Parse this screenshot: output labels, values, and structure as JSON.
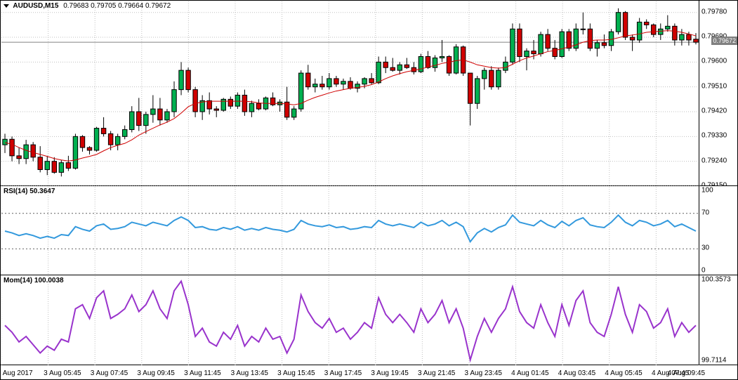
{
  "symbol": "AUDUSD,M15",
  "ohlc": "0.79683 0.79705 0.79664 0.79672",
  "price_panel": {
    "ylim": [
      0.7915,
      0.7982
    ],
    "yticks": [
      0.7915,
      0.7924,
      0.7933,
      0.7942,
      0.7951,
      0.796,
      0.7969,
      0.7978
    ],
    "ytick_labels": [
      "0.79150",
      "0.79240",
      "0.79330",
      "0.79420",
      "0.79510",
      "0.79600",
      "0.79690",
      "0.79780"
    ],
    "current_price": 0.79672,
    "current_price_label": "0.79672",
    "grid_color": "#c0c0c0",
    "bg_color": "#ffffff",
    "ma_color": "#d00000",
    "candle_up_color": "#00b050",
    "candle_down_color": "#d00000",
    "candle_border": "#000000",
    "candles": [
      {
        "o": 0.793,
        "h": 0.7934,
        "l": 0.7927,
        "c": 0.7932
      },
      {
        "o": 0.7932,
        "h": 0.7933,
        "l": 0.7924,
        "c": 0.7926
      },
      {
        "o": 0.7926,
        "h": 0.7929,
        "l": 0.7923,
        "c": 0.7925
      },
      {
        "o": 0.7925,
        "h": 0.79318,
        "l": 0.7923,
        "c": 0.793
      },
      {
        "o": 0.793,
        "h": 0.7931,
        "l": 0.7924,
        "c": 0.79255
      },
      {
        "o": 0.79255,
        "h": 0.79295,
        "l": 0.792,
        "c": 0.7921
      },
      {
        "o": 0.7921,
        "h": 0.7926,
        "l": 0.7919,
        "c": 0.7924
      },
      {
        "o": 0.7924,
        "h": 0.79255,
        "l": 0.79195,
        "c": 0.792
      },
      {
        "o": 0.792,
        "h": 0.79245,
        "l": 0.79185,
        "c": 0.79235
      },
      {
        "o": 0.79235,
        "h": 0.7926,
        "l": 0.79205,
        "c": 0.79215
      },
      {
        "o": 0.79215,
        "h": 0.7934,
        "l": 0.7921,
        "c": 0.7933
      },
      {
        "o": 0.7933,
        "h": 0.79335,
        "l": 0.79275,
        "c": 0.7929
      },
      {
        "o": 0.7929,
        "h": 0.79295,
        "l": 0.79265,
        "c": 0.7928
      },
      {
        "o": 0.7928,
        "h": 0.79365,
        "l": 0.79275,
        "c": 0.7936
      },
      {
        "o": 0.7936,
        "h": 0.794,
        "l": 0.7933,
        "c": 0.7934
      },
      {
        "o": 0.7934,
        "h": 0.7935,
        "l": 0.7928,
        "c": 0.793
      },
      {
        "o": 0.793,
        "h": 0.7934,
        "l": 0.7928,
        "c": 0.7933
      },
      {
        "o": 0.7933,
        "h": 0.7937,
        "l": 0.7932,
        "c": 0.79355
      },
      {
        "o": 0.79355,
        "h": 0.7944,
        "l": 0.79345,
        "c": 0.7942
      },
      {
        "o": 0.7942,
        "h": 0.7947,
        "l": 0.7935,
        "c": 0.7937
      },
      {
        "o": 0.7937,
        "h": 0.7942,
        "l": 0.7934,
        "c": 0.7941
      },
      {
        "o": 0.7941,
        "h": 0.7948,
        "l": 0.7938,
        "c": 0.7943
      },
      {
        "o": 0.7943,
        "h": 0.7947,
        "l": 0.7937,
        "c": 0.7939
      },
      {
        "o": 0.7939,
        "h": 0.7943,
        "l": 0.7938,
        "c": 0.7942
      },
      {
        "o": 0.7942,
        "h": 0.7953,
        "l": 0.794,
        "c": 0.795
      },
      {
        "o": 0.795,
        "h": 0.796,
        "l": 0.7948,
        "c": 0.7957
      },
      {
        "o": 0.7957,
        "h": 0.7958,
        "l": 0.7949,
        "c": 0.795
      },
      {
        "o": 0.795,
        "h": 0.7951,
        "l": 0.794,
        "c": 0.7942
      },
      {
        "o": 0.7942,
        "h": 0.7948,
        "l": 0.7939,
        "c": 0.7946
      },
      {
        "o": 0.7946,
        "h": 0.7949,
        "l": 0.7941,
        "c": 0.7943
      },
      {
        "o": 0.7943,
        "h": 0.7944,
        "l": 0.794,
        "c": 0.79425
      },
      {
        "o": 0.79425,
        "h": 0.7947,
        "l": 0.7942,
        "c": 0.79465
      },
      {
        "o": 0.79465,
        "h": 0.79475,
        "l": 0.7943,
        "c": 0.7944
      },
      {
        "o": 0.7944,
        "h": 0.7949,
        "l": 0.7943,
        "c": 0.7948
      },
      {
        "o": 0.7948,
        "h": 0.795,
        "l": 0.79405,
        "c": 0.7942
      },
      {
        "o": 0.7942,
        "h": 0.7946,
        "l": 0.794,
        "c": 0.7945
      },
      {
        "o": 0.7945,
        "h": 0.79465,
        "l": 0.79425,
        "c": 0.7943
      },
      {
        "o": 0.7943,
        "h": 0.79475,
        "l": 0.79425,
        "c": 0.7947
      },
      {
        "o": 0.7947,
        "h": 0.7949,
        "l": 0.7944,
        "c": 0.79445
      },
      {
        "o": 0.79445,
        "h": 0.79465,
        "l": 0.7942,
        "c": 0.79455
      },
      {
        "o": 0.79455,
        "h": 0.7951,
        "l": 0.7939,
        "c": 0.794
      },
      {
        "o": 0.794,
        "h": 0.7944,
        "l": 0.7939,
        "c": 0.7943
      },
      {
        "o": 0.7943,
        "h": 0.7957,
        "l": 0.7942,
        "c": 0.7956
      },
      {
        "o": 0.7956,
        "h": 0.7959,
        "l": 0.795,
        "c": 0.7951
      },
      {
        "o": 0.7951,
        "h": 0.7954,
        "l": 0.7949,
        "c": 0.7952
      },
      {
        "o": 0.7952,
        "h": 0.7955,
        "l": 0.795,
        "c": 0.7951
      },
      {
        "o": 0.7951,
        "h": 0.7956,
        "l": 0.795,
        "c": 0.7954
      },
      {
        "o": 0.7954,
        "h": 0.7955,
        "l": 0.7951,
        "c": 0.7952
      },
      {
        "o": 0.7952,
        "h": 0.7954,
        "l": 0.795,
        "c": 0.7953
      },
      {
        "o": 0.7953,
        "h": 0.79545,
        "l": 0.795,
        "c": 0.79505
      },
      {
        "o": 0.79505,
        "h": 0.7953,
        "l": 0.7949,
        "c": 0.7952
      },
      {
        "o": 0.7952,
        "h": 0.79545,
        "l": 0.79505,
        "c": 0.7954
      },
      {
        "o": 0.7954,
        "h": 0.7956,
        "l": 0.7952,
        "c": 0.79525
      },
      {
        "o": 0.79525,
        "h": 0.7962,
        "l": 0.7952,
        "c": 0.796
      },
      {
        "o": 0.796,
        "h": 0.7962,
        "l": 0.7956,
        "c": 0.7958
      },
      {
        "o": 0.7958,
        "h": 0.79615,
        "l": 0.79565,
        "c": 0.7957
      },
      {
        "o": 0.7957,
        "h": 0.796,
        "l": 0.79555,
        "c": 0.7959
      },
      {
        "o": 0.7959,
        "h": 0.79615,
        "l": 0.79575,
        "c": 0.7958
      },
      {
        "o": 0.7958,
        "h": 0.796,
        "l": 0.79555,
        "c": 0.79565
      },
      {
        "o": 0.79565,
        "h": 0.7963,
        "l": 0.7956,
        "c": 0.7962
      },
      {
        "o": 0.7962,
        "h": 0.7964,
        "l": 0.79575,
        "c": 0.7958
      },
      {
        "o": 0.7958,
        "h": 0.79625,
        "l": 0.79565,
        "c": 0.79615
      },
      {
        "o": 0.79615,
        "h": 0.7968,
        "l": 0.796,
        "c": 0.7962
      },
      {
        "o": 0.7962,
        "h": 0.79625,
        "l": 0.7955,
        "c": 0.7956
      },
      {
        "o": 0.7956,
        "h": 0.79665,
        "l": 0.79555,
        "c": 0.79655
      },
      {
        "o": 0.79655,
        "h": 0.7966,
        "l": 0.7955,
        "c": 0.7956
      },
      {
        "o": 0.7956,
        "h": 0.7956,
        "l": 0.7937,
        "c": 0.7945
      },
      {
        "o": 0.7945,
        "h": 0.7955,
        "l": 0.7943,
        "c": 0.7954
      },
      {
        "o": 0.7954,
        "h": 0.7958,
        "l": 0.795,
        "c": 0.7957
      },
      {
        "o": 0.7957,
        "h": 0.79585,
        "l": 0.795,
        "c": 0.7951
      },
      {
        "o": 0.7951,
        "h": 0.7958,
        "l": 0.795,
        "c": 0.7957
      },
      {
        "o": 0.7957,
        "h": 0.7962,
        "l": 0.7956,
        "c": 0.796
      },
      {
        "o": 0.796,
        "h": 0.7974,
        "l": 0.7959,
        "c": 0.7972
      },
      {
        "o": 0.7972,
        "h": 0.7974,
        "l": 0.796,
        "c": 0.7962
      },
      {
        "o": 0.7962,
        "h": 0.7965,
        "l": 0.7957,
        "c": 0.7964
      },
      {
        "o": 0.7964,
        "h": 0.7968,
        "l": 0.7961,
        "c": 0.7963
      },
      {
        "o": 0.7963,
        "h": 0.7971,
        "l": 0.7962,
        "c": 0.797
      },
      {
        "o": 0.797,
        "h": 0.7972,
        "l": 0.7964,
        "c": 0.7965
      },
      {
        "o": 0.7965,
        "h": 0.7968,
        "l": 0.7961,
        "c": 0.7962
      },
      {
        "o": 0.7962,
        "h": 0.7972,
        "l": 0.79615,
        "c": 0.7971
      },
      {
        "o": 0.7971,
        "h": 0.7972,
        "l": 0.7964,
        "c": 0.7965
      },
      {
        "o": 0.7965,
        "h": 0.7974,
        "l": 0.7964,
        "c": 0.7972
      },
      {
        "o": 0.7972,
        "h": 0.7978,
        "l": 0.797,
        "c": 0.7972
      },
      {
        "o": 0.7972,
        "h": 0.7974,
        "l": 0.7964,
        "c": 0.7965
      },
      {
        "o": 0.7965,
        "h": 0.7968,
        "l": 0.7962,
        "c": 0.7967
      },
      {
        "o": 0.7967,
        "h": 0.797,
        "l": 0.7965,
        "c": 0.7966
      },
      {
        "o": 0.7966,
        "h": 0.7972,
        "l": 0.7964,
        "c": 0.7971
      },
      {
        "o": 0.7971,
        "h": 0.79795,
        "l": 0.797,
        "c": 0.7978
      },
      {
        "o": 0.7978,
        "h": 0.79785,
        "l": 0.7968,
        "c": 0.7969
      },
      {
        "o": 0.7969,
        "h": 0.797,
        "l": 0.7964,
        "c": 0.7968
      },
      {
        "o": 0.7968,
        "h": 0.7976,
        "l": 0.7967,
        "c": 0.79745
      },
      {
        "o": 0.79745,
        "h": 0.79755,
        "l": 0.7972,
        "c": 0.79735
      },
      {
        "o": 0.79735,
        "h": 0.7974,
        "l": 0.7969,
        "c": 0.797
      },
      {
        "o": 0.797,
        "h": 0.7974,
        "l": 0.7968,
        "c": 0.7972
      },
      {
        "o": 0.7972,
        "h": 0.7977,
        "l": 0.7971,
        "c": 0.7973
      },
      {
        "o": 0.7973,
        "h": 0.7974,
        "l": 0.7966,
        "c": 0.7968
      },
      {
        "o": 0.7968,
        "h": 0.7972,
        "l": 0.7966,
        "c": 0.797
      },
      {
        "o": 0.797,
        "h": 0.7971,
        "l": 0.7966,
        "c": 0.7968
      },
      {
        "o": 0.79683,
        "h": 0.79705,
        "l": 0.79664,
        "c": 0.79672
      }
    ],
    "ma": [
      0.79308,
      0.79302,
      0.7929,
      0.7928,
      0.79272,
      0.79265,
      0.79258,
      0.7925,
      0.79245,
      0.79241,
      0.79245,
      0.79252,
      0.79258,
      0.79265,
      0.79278,
      0.7929,
      0.79298,
      0.79305,
      0.79318,
      0.79335,
      0.79348,
      0.7936,
      0.79372,
      0.79382,
      0.79395,
      0.79415,
      0.79438,
      0.7945,
      0.79455,
      0.79458,
      0.79458,
      0.79458,
      0.79458,
      0.79458,
      0.79458,
      0.79456,
      0.79452,
      0.7945,
      0.7945,
      0.7945,
      0.79448,
      0.79445,
      0.7945,
      0.79462,
      0.79472,
      0.7948,
      0.79488,
      0.79495,
      0.795,
      0.79505,
      0.79508,
      0.79512,
      0.79518,
      0.79528,
      0.7954,
      0.7955,
      0.79558,
      0.79565,
      0.7957,
      0.79575,
      0.79582,
      0.79588,
      0.79595,
      0.796,
      0.79605,
      0.79608,
      0.796,
      0.7959,
      0.79585,
      0.7958,
      0.79578,
      0.7958,
      0.79592,
      0.79605,
      0.79615,
      0.79622,
      0.7963,
      0.79638,
      0.79642,
      0.79648,
      0.79655,
      0.79662,
      0.79672,
      0.79678,
      0.7968,
      0.7968,
      0.79682,
      0.79688,
      0.79695,
      0.79698,
      0.79702,
      0.79708,
      0.7971,
      0.79712,
      0.79714,
      0.79712,
      0.79708,
      0.79702,
      0.79695
    ]
  },
  "rsi_panel": {
    "label": "RSI(14) 50.3647",
    "ylim": [
      0,
      100
    ],
    "yticks": [
      0,
      30,
      70,
      100
    ],
    "ytick_labels": [
      "0",
      "30",
      "70",
      "100"
    ],
    "levels": [
      30,
      70
    ],
    "line_color": "#3399dd",
    "data": [
      50,
      48,
      45,
      47,
      45,
      42,
      44,
      42,
      46,
      45,
      55,
      52,
      50,
      56,
      58,
      52,
      53,
      55,
      60,
      58,
      56,
      60,
      58,
      56,
      62,
      66,
      62,
      54,
      55,
      52,
      51,
      54,
      52,
      55,
      51,
      53,
      51,
      54,
      52,
      51,
      49,
      52,
      62,
      58,
      56,
      55,
      57,
      54,
      55,
      52,
      53,
      55,
      54,
      62,
      58,
      56,
      58,
      56,
      54,
      60,
      56,
      58,
      62,
      56,
      60,
      55,
      38,
      48,
      53,
      49,
      54,
      57,
      68,
      60,
      58,
      56,
      62,
      57,
      54,
      61,
      56,
      62,
      65,
      57,
      55,
      54,
      60,
      68,
      60,
      56,
      62,
      60,
      56,
      58,
      62,
      55,
      58,
      54,
      50
    ]
  },
  "mom_panel": {
    "label": "Mom(14) 100.0038",
    "ylim": [
      99.7114,
      100.3573
    ],
    "yticks": [
      99.7114,
      100.3573
    ],
    "ytick_labels": [
      "99.7114",
      "100.3573"
    ],
    "line_color": "#9933cc",
    "data": [
      100.0,
      99.95,
      99.88,
      99.92,
      99.86,
      99.8,
      99.85,
      99.82,
      99.9,
      99.88,
      100.12,
      100.15,
      100.05,
      100.2,
      100.25,
      100.05,
      100.08,
      100.12,
      100.22,
      100.1,
      100.15,
      100.25,
      100.12,
      100.05,
      100.25,
      100.32,
      100.15,
      99.92,
      99.98,
      99.88,
      99.85,
      99.95,
      99.9,
      100.0,
      99.85,
      99.92,
      99.88,
      99.98,
      99.9,
      99.92,
      99.8,
      99.9,
      100.22,
      100.1,
      100.02,
      99.98,
      100.05,
      99.95,
      99.98,
      99.9,
      99.95,
      100.02,
      99.98,
      100.2,
      100.08,
      100.02,
      100.08,
      100.02,
      99.95,
      100.12,
      100.02,
      100.08,
      100.18,
      100.02,
      100.12,
      99.98,
      99.75,
      99.92,
      100.05,
      99.95,
      100.05,
      100.12,
      100.28,
      100.1,
      100.02,
      99.98,
      100.15,
      100.02,
      99.92,
      100.15,
      100.0,
      100.18,
      100.25,
      100.02,
      99.95,
      99.92,
      100.08,
      100.28,
      100.08,
      99.95,
      100.15,
      100.1,
      99.98,
      100.02,
      100.12,
      99.92,
      100.02,
      99.95,
      100.0
    ]
  },
  "x_axis": {
    "labels": [
      "3 Aug 2017",
      "3 Aug 05:45",
      "3 Aug 07:45",
      "3 Aug 09:45",
      "3 Aug 11:45",
      "3 Aug 13:45",
      "3 Aug 15:45",
      "3 Aug 17:45",
      "3 Aug 19:45",
      "3 Aug 21:45",
      "3 Aug 23:45",
      "4 Aug 01:45",
      "4 Aug 03:45",
      "4 Aug 05:45",
      "4 Aug 07:45",
      "4 Aug 09:45"
    ],
    "positions": [
      0,
      0.067,
      0.134,
      0.201,
      0.268,
      0.335,
      0.402,
      0.469,
      0.536,
      0.603,
      0.67,
      0.737,
      0.804,
      0.871,
      0.938,
      1.0
    ]
  }
}
